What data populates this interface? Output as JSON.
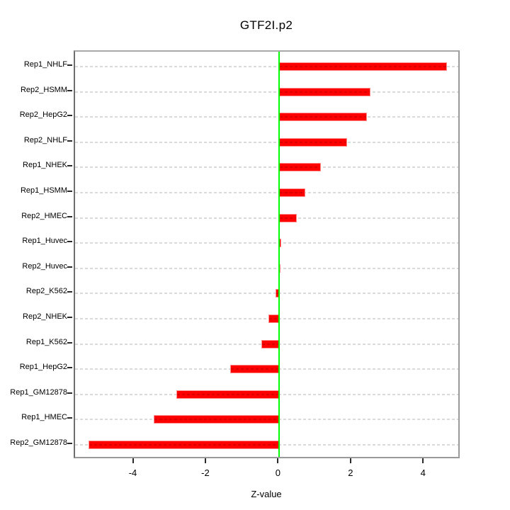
{
  "title": "GTF2I.p2",
  "xlabel": "Z-value",
  "colors": {
    "bar": "#ff0000",
    "bar_border": "#ff8f8f",
    "zero_line": "#00ff00",
    "grid": "#dadada",
    "box_border": "#9a9a9a",
    "y_axis": "#1a1a1a",
    "x_axis_segment": "#5f5f5f",
    "text": "#000000",
    "background": "#ffffff"
  },
  "chart_data": {
    "type": "bar",
    "orientation": "horizontal",
    "title": "GTF2I.p2",
    "xlabel": "Z-value",
    "ylabel": "",
    "categories": [
      "Rep1_NHLF",
      "Rep2_HSMM",
      "Rep2_HepG2",
      "Rep2_NHLF",
      "Rep1_NHEK",
      "Rep1_HSMM",
      "Rep2_HMEC",
      "Rep1_Huvec",
      "Rep2_Huvec",
      "Rep2_K562",
      "Rep2_NHEK",
      "Rep1_K562",
      "Rep1_HepG2",
      "Rep1_GM12878",
      "Rep1_HMEC",
      "Rep2_GM12878"
    ],
    "values": [
      4.61,
      2.52,
      2.41,
      1.87,
      1.14,
      0.72,
      0.48,
      0.06,
      0.02,
      -0.1,
      -0.3,
      -0.49,
      -1.35,
      -2.84,
      -3.46,
      -5.26
    ],
    "x_ticks": [
      -4,
      -2,
      0,
      2,
      4
    ],
    "x_tick_labels": [
      "-4",
      "-2",
      "0",
      "2",
      "4"
    ],
    "xlim": [
      -5.64,
      5.0
    ],
    "grid": "horizontal-dashed",
    "zero_line": true,
    "legend": "none"
  }
}
